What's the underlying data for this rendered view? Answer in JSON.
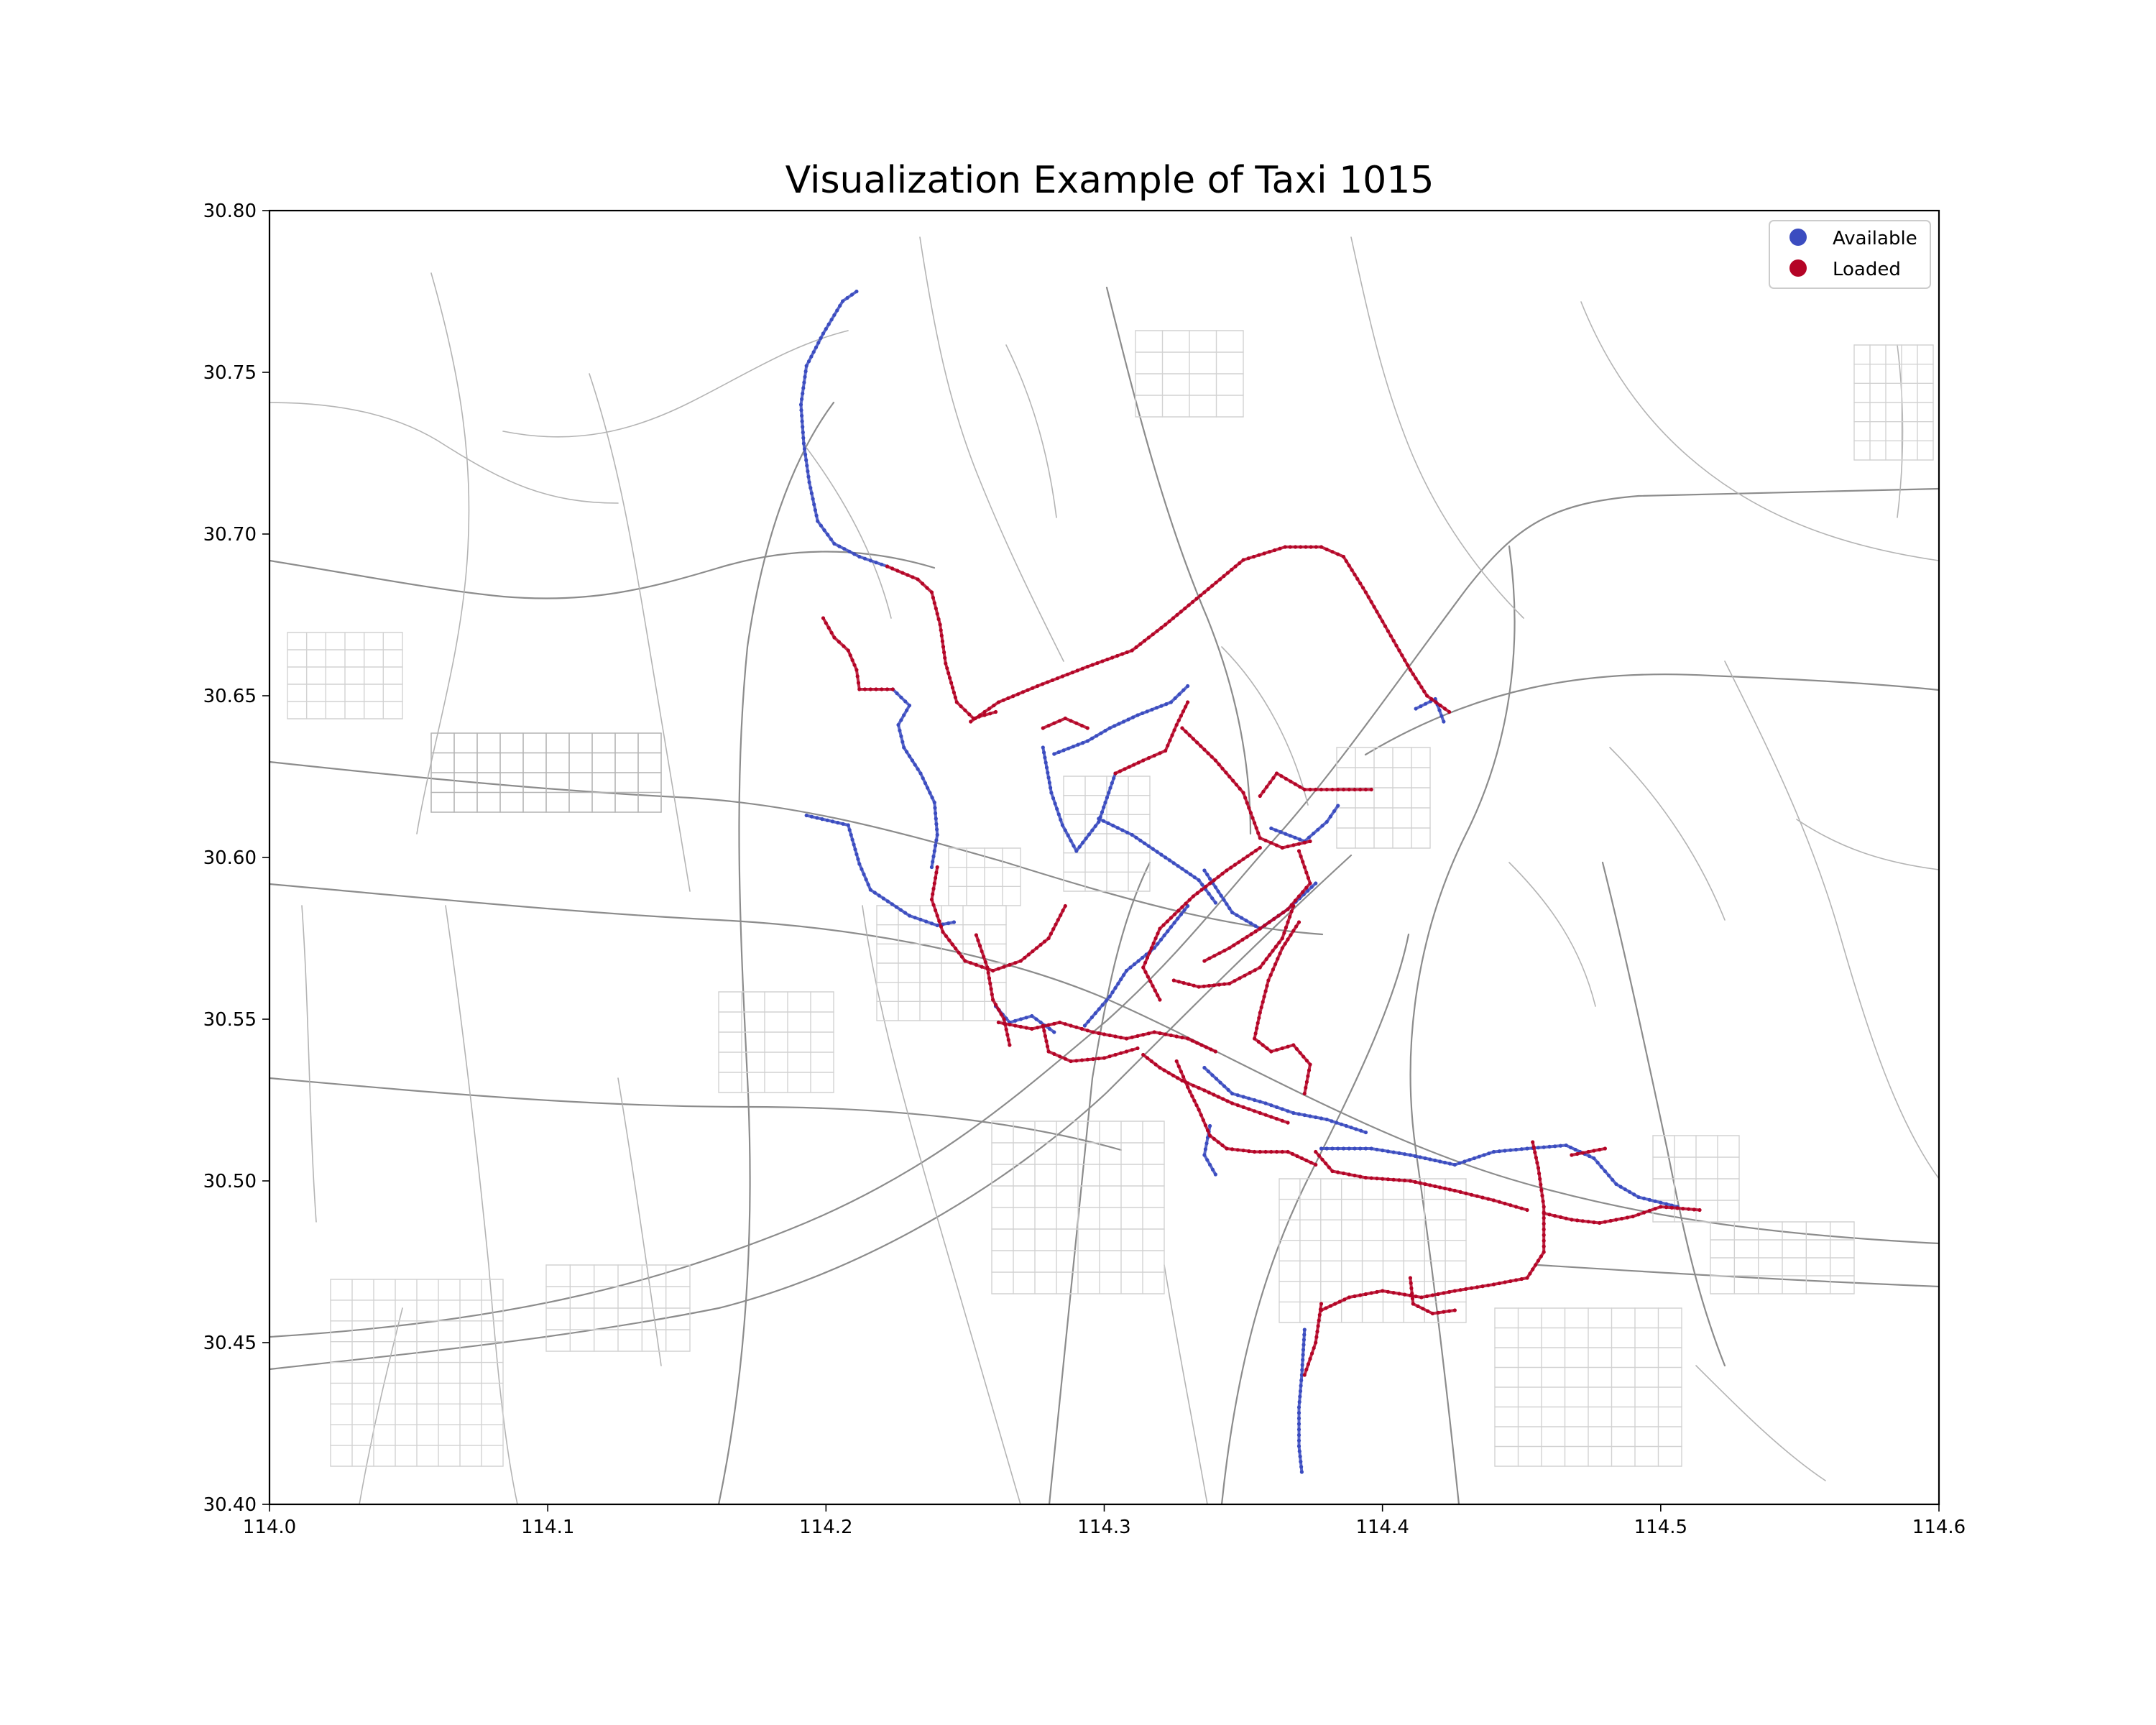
{
  "chart_data": {
    "type": "scatter",
    "title": "Visualization Example of Taxi 1015",
    "xlabel": "",
    "ylabel": "",
    "xlim": [
      114.0,
      114.6
    ],
    "ylim": [
      30.4,
      30.8
    ],
    "xticks": [
      "114.0",
      "114.1",
      "114.2",
      "114.3",
      "114.4",
      "114.5",
      "114.6"
    ],
    "yticks": [
      "30.40",
      "30.45",
      "30.50",
      "30.55",
      "30.60",
      "30.65",
      "30.70",
      "30.75",
      "30.80"
    ],
    "legend": {
      "position": "top-right",
      "entries": [
        {
          "label": "Available",
          "color": "#3b4cc0"
        },
        {
          "label": "Loaded",
          "color": "#b40426"
        }
      ]
    },
    "background": "road network basemap (grey)",
    "series": [
      {
        "name": "Available",
        "color": "#3b4cc0",
        "segments": [
          [
            [
              114.211,
              30.775
            ],
            [
              114.206,
              30.772
            ],
            [
              114.199,
              30.762
            ],
            [
              114.193,
              30.752
            ],
            [
              114.191,
              30.74
            ],
            [
              114.192,
              30.728
            ],
            [
              114.194,
              30.716
            ],
            [
              114.197,
              30.704
            ],
            [
              114.203,
              30.697
            ],
            [
              114.212,
              30.693
            ],
            [
              114.222,
              30.69
            ]
          ],
          [
            [
              114.224,
              30.652
            ],
            [
              114.23,
              30.647
            ],
            [
              114.226,
              30.641
            ],
            [
              114.228,
              30.634
            ],
            [
              114.234,
              30.626
            ],
            [
              114.239,
              30.617
            ],
            [
              114.24,
              30.607
            ],
            [
              114.238,
              30.597
            ]
          ],
          [
            [
              114.193,
              30.613
            ],
            [
              114.208,
              30.61
            ],
            [
              114.212,
              30.598
            ],
            [
              114.216,
              30.59
            ],
            [
              114.23,
              30.582
            ],
            [
              114.24,
              30.579
            ],
            [
              114.246,
              30.58
            ]
          ],
          [
            [
              114.278,
              30.634
            ],
            [
              114.281,
              30.62
            ],
            [
              114.285,
              30.61
            ],
            [
              114.29,
              30.602
            ],
            [
              114.298,
              30.611
            ],
            [
              114.304,
              30.626
            ]
          ],
          [
            [
              114.282,
              30.632
            ],
            [
              114.294,
              30.636
            ],
            [
              114.302,
              30.64
            ],
            [
              114.312,
              30.644
            ],
            [
              114.324,
              30.648
            ],
            [
              114.33,
              30.653
            ]
          ],
          [
            [
              114.298,
              30.612
            ],
            [
              114.31,
              30.607
            ],
            [
              114.322,
              30.6
            ],
            [
              114.334,
              30.593
            ],
            [
              114.34,
              30.586
            ]
          ],
          [
            [
              114.33,
              30.585
            ],
            [
              114.318,
              30.572
            ],
            [
              114.308,
              30.565
            ],
            [
              114.302,
              30.557
            ],
            [
              114.293,
              30.548
            ]
          ],
          [
            [
              114.336,
              30.596
            ],
            [
              114.346,
              30.583
            ],
            [
              114.356,
              30.578
            ],
            [
              114.366,
              30.584
            ],
            [
              114.376,
              30.592
            ]
          ],
          [
            [
              114.36,
              30.609
            ],
            [
              114.372,
              30.605
            ],
            [
              114.38,
              30.611
            ],
            [
              114.384,
              30.616
            ]
          ],
          [
            [
              114.336,
              30.535
            ],
            [
              114.346,
              30.527
            ],
            [
              114.358,
              30.524
            ],
            [
              114.368,
              30.521
            ],
            [
              114.38,
              30.519
            ],
            [
              114.394,
              30.515
            ]
          ],
          [
            [
              114.378,
              30.51
            ],
            [
              114.396,
              30.51
            ],
            [
              114.41,
              30.508
            ],
            [
              114.426,
              30.505
            ],
            [
              114.44,
              30.509
            ],
            [
              114.452,
              30.51
            ],
            [
              114.466,
              30.511
            ],
            [
              114.476,
              30.507
            ],
            [
              114.484,
              30.499
            ],
            [
              114.492,
              30.495
            ],
            [
              114.506,
              30.492
            ]
          ],
          [
            [
              114.338,
              30.517
            ],
            [
              114.336,
              30.508
            ],
            [
              114.34,
              30.502
            ]
          ],
          [
            [
              114.372,
              30.454
            ],
            [
              114.371,
              30.44
            ],
            [
              114.37,
              30.43
            ],
            [
              114.37,
              30.418
            ],
            [
              114.371,
              30.41
            ]
          ],
          [
            [
              114.261,
              30.554
            ],
            [
              114.266,
              30.549
            ],
            [
              114.274,
              30.551
            ],
            [
              114.282,
              30.546
            ]
          ],
          [
            [
              114.412,
              30.646
            ],
            [
              114.419,
              30.649
            ],
            [
              114.422,
              30.642
            ]
          ]
        ]
      },
      {
        "name": "Loaded",
        "color": "#b40426",
        "segments": [
          [
            [
              114.222,
              30.69
            ],
            [
              114.233,
              30.686
            ],
            [
              114.238,
              30.682
            ],
            [
              114.241,
              30.672
            ],
            [
              114.243,
              30.66
            ],
            [
              114.247,
              30.648
            ],
            [
              114.253,
              30.643
            ],
            [
              114.261,
              30.645
            ]
          ],
          [
            [
              114.199,
              30.674
            ],
            [
              114.203,
              30.668
            ],
            [
              114.208,
              30.664
            ],
            [
              114.211,
              30.658
            ],
            [
              114.212,
              30.652
            ],
            [
              114.224,
              30.652
            ]
          ],
          [
            [
              114.252,
              30.642
            ],
            [
              114.262,
              30.648
            ],
            [
              114.276,
              30.653
            ],
            [
              114.294,
              30.659
            ],
            [
              114.31,
              30.664
            ],
            [
              114.322,
              30.672
            ],
            [
              114.336,
              30.682
            ],
            [
              114.35,
              30.692
            ],
            [
              114.365,
              30.696
            ],
            [
              114.378,
              30.696
            ],
            [
              114.386,
              30.693
            ],
            [
              114.394,
              30.682
            ],
            [
              114.402,
              30.67
            ],
            [
              114.41,
              30.658
            ],
            [
              114.416,
              30.65
            ],
            [
              114.424,
              30.645
            ]
          ],
          [
            [
              114.24,
              30.597
            ],
            [
              114.238,
              30.587
            ],
            [
              114.242,
              30.577
            ],
            [
              114.25,
              30.568
            ],
            [
              114.26,
              30.565
            ],
            [
              114.27,
              30.568
            ],
            [
              114.28,
              30.575
            ],
            [
              114.286,
              30.585
            ]
          ],
          [
            [
              114.254,
              30.576
            ],
            [
              114.258,
              30.566
            ],
            [
              114.26,
              30.556
            ],
            [
              114.264,
              30.55
            ],
            [
              114.266,
              30.542
            ]
          ],
          [
            [
              114.262,
              30.549
            ],
            [
              114.274,
              30.547
            ],
            [
              114.284,
              30.549
            ],
            [
              114.296,
              30.546
            ],
            [
              114.308,
              30.544
            ],
            [
              114.318,
              30.546
            ],
            [
              114.33,
              30.544
            ],
            [
              114.34,
              30.54
            ]
          ],
          [
            [
              114.278,
              30.548
            ],
            [
              114.28,
              30.54
            ],
            [
              114.288,
              30.537
            ],
            [
              114.3,
              30.538
            ],
            [
              114.312,
              30.541
            ]
          ],
          [
            [
              114.304,
              30.626
            ],
            [
              114.314,
              30.63
            ],
            [
              114.322,
              30.633
            ],
            [
              114.326,
              30.641
            ],
            [
              114.33,
              30.648
            ]
          ],
          [
            [
              114.32,
              30.556
            ],
            [
              114.314,
              30.566
            ],
            [
              114.32,
              30.578
            ],
            [
              114.332,
              30.588
            ],
            [
              114.344,
              30.596
            ],
            [
              114.356,
              30.603
            ]
          ],
          [
            [
              114.328,
              30.64
            ],
            [
              114.34,
              30.63
            ],
            [
              114.35,
              30.62
            ],
            [
              114.356,
              30.606
            ],
            [
              114.364,
              30.603
            ],
            [
              114.374,
              30.605
            ]
          ],
          [
            [
              114.356,
              30.619
            ],
            [
              114.362,
              30.626
            ],
            [
              114.372,
              30.621
            ],
            [
              114.384,
              30.621
            ],
            [
              114.396,
              30.621
            ]
          ],
          [
            [
              114.37,
              30.602
            ],
            [
              114.374,
              30.592
            ],
            [
              114.366,
              30.584
            ],
            [
              114.356,
              30.578
            ],
            [
              114.345,
              30.572
            ],
            [
              114.336,
              30.568
            ]
          ],
          [
            [
              114.325,
              30.562
            ],
            [
              114.334,
              30.56
            ],
            [
              114.345,
              30.561
            ],
            [
              114.356,
              30.566
            ],
            [
              114.364,
              30.575
            ],
            [
              114.368,
              30.585
            ]
          ],
          [
            [
              114.37,
              30.58
            ],
            [
              114.364,
              30.572
            ],
            [
              114.359,
              30.562
            ],
            [
              114.356,
              30.552
            ],
            [
              114.354,
              30.544
            ],
            [
              114.36,
              30.54
            ],
            [
              114.368,
              30.542
            ],
            [
              114.374,
              30.536
            ],
            [
              114.372,
              30.527
            ]
          ],
          [
            [
              114.314,
              30.539
            ],
            [
              114.32,
              30.535
            ],
            [
              114.328,
              30.531
            ],
            [
              114.336,
              30.528
            ],
            [
              114.346,
              30.524
            ],
            [
              114.356,
              30.521
            ],
            [
              114.366,
              30.518
            ]
          ],
          [
            [
              114.326,
              30.537
            ],
            [
              114.33,
              30.529
            ],
            [
              114.334,
              30.522
            ],
            [
              114.338,
              30.514
            ],
            [
              114.344,
              30.51
            ],
            [
              114.354,
              30.509
            ],
            [
              114.366,
              30.509
            ],
            [
              114.376,
              30.505
            ]
          ],
          [
            [
              114.376,
              30.509
            ],
            [
              114.382,
              30.503
            ],
            [
              114.394,
              30.501
            ],
            [
              114.41,
              30.5
            ],
            [
              114.426,
              30.497
            ],
            [
              114.44,
              30.494
            ],
            [
              114.452,
              30.491
            ]
          ],
          [
            [
              114.454,
              30.512
            ],
            [
              114.456,
              30.504
            ],
            [
              114.458,
              30.492
            ],
            [
              114.458,
              30.478
            ],
            [
              114.452,
              30.47
            ],
            [
              114.44,
              30.468
            ],
            [
              114.426,
              30.466
            ],
            [
              114.414,
              30.464
            ],
            [
              114.4,
              30.466
            ],
            [
              114.388,
              30.464
            ],
            [
              114.378,
              30.46
            ]
          ],
          [
            [
              114.458,
              30.49
            ],
            [
              114.468,
              30.488
            ],
            [
              114.478,
              30.487
            ],
            [
              114.49,
              30.489
            ],
            [
              114.5,
              30.492
            ],
            [
              114.514,
              30.491
            ]
          ],
          [
            [
              114.41,
              30.47
            ],
            [
              114.411,
              30.462
            ],
            [
              114.418,
              30.459
            ],
            [
              114.426,
              30.46
            ]
          ],
          [
            [
              114.378,
              30.462
            ],
            [
              114.376,
              30.45
            ],
            [
              114.372,
              30.44
            ]
          ],
          [
            [
              114.468,
              30.508
            ],
            [
              114.474,
              30.509
            ],
            [
              114.48,
              30.51
            ]
          ],
          [
            [
              114.278,
              30.64
            ],
            [
              114.286,
              30.643
            ],
            [
              114.294,
              30.64
            ]
          ]
        ]
      }
    ]
  }
}
